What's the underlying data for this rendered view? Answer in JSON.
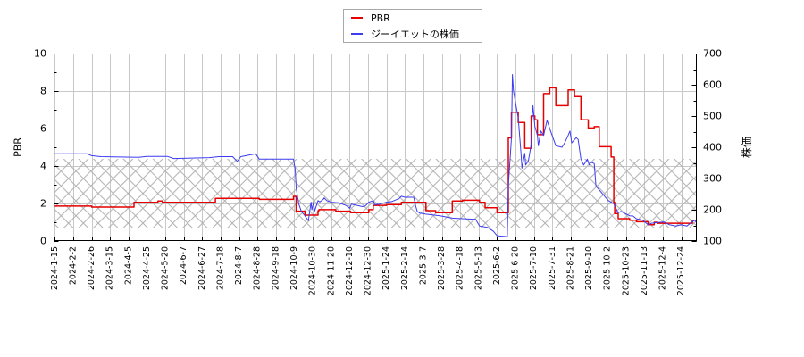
{
  "chart_data": {
    "type": "line",
    "xlabel": "",
    "ylabel": "PBR",
    "ylabel_right": "株価",
    "grid": true,
    "legend": {
      "position": "upper center",
      "entries": [
        "PBR",
        "ジーイエットの株価"
      ]
    },
    "x_ticks": [
      "2024-1-15",
      "2024-2-2",
      "2024-2-26",
      "2024-3-15",
      "2024-4-5",
      "2024-4-25",
      "2024-5-20",
      "2024-6-7",
      "2024-6-27",
      "2024-7-18",
      "2024-8-7",
      "2024-8-28",
      "2024-9-18",
      "2024-10-9",
      "2024-10-30",
      "2024-11-20",
      "2024-12-10",
      "2024-12-30",
      "2025-1-24",
      "2025-2-14",
      "2025-3-7",
      "2025-3-28",
      "2025-4-18",
      "2025-5-13",
      "2025-6-2",
      "2025-6-20",
      "2025-7-10",
      "2025-7-31",
      "2025-8-21",
      "2025-9-10",
      "2025-10-2",
      "2025-10-23",
      "2025-11-13",
      "2025-12-4",
      "2025-12-24"
    ],
    "y_left": {
      "label": "PBR",
      "min": 0,
      "max": 10,
      "ticks": [
        0,
        2,
        4,
        6,
        8,
        10
      ],
      "minor_step": 1
    },
    "y_right": {
      "label": "株価",
      "min": 100,
      "max": 700,
      "ticks": [
        100,
        200,
        300,
        400,
        500,
        600,
        700
      ],
      "minor_step": 50
    },
    "shaded_band": {
      "axis": "left",
      "y_range": [
        0.67,
        4.38
      ],
      "style": "crosshatch"
    },
    "series": [
      {
        "id": "pbr",
        "name": "PBR",
        "axis": "left",
        "color": "#e60000",
        "width": 1.5,
        "step": true,
        "points": [
          [
            "2024-01-15",
            1.86
          ],
          [
            "2024-02-26",
            1.81
          ],
          [
            "2024-04-11",
            2.06
          ],
          [
            "2024-05-10",
            2.13
          ],
          [
            "2024-05-16",
            2.06
          ],
          [
            "2024-07-12",
            2.27
          ],
          [
            "2024-08-30",
            2.22
          ],
          [
            "2024-10-08",
            2.38
          ],
          [
            "2024-10-11",
            1.59
          ],
          [
            "2024-10-21",
            1.38
          ],
          [
            "2024-11-05",
            1.62
          ],
          [
            "2024-11-06",
            1.67
          ],
          [
            "2024-11-25",
            1.59
          ],
          [
            "2024-12-11",
            1.51
          ],
          [
            "2024-12-31",
            1.67
          ],
          [
            "2025-01-06",
            1.9
          ],
          [
            "2025-01-24",
            1.94
          ],
          [
            "2025-02-10",
            2.06
          ],
          [
            "2025-03-10",
            1.62
          ],
          [
            "2025-03-21",
            1.51
          ],
          [
            "2025-04-09",
            2.13
          ],
          [
            "2025-04-21",
            2.17
          ],
          [
            "2025-05-14",
            2.06
          ],
          [
            "2025-05-20",
            1.77
          ],
          [
            "2025-06-02",
            1.51
          ],
          [
            "2025-06-13",
            5.5
          ],
          [
            "2025-06-16",
            6.87
          ],
          [
            "2025-06-23",
            6.32
          ],
          [
            "2025-06-30",
            4.95
          ],
          [
            "2025-07-07",
            6.67
          ],
          [
            "2025-07-11",
            6.46
          ],
          [
            "2025-07-14",
            5.67
          ],
          [
            "2025-07-21",
            7.86
          ],
          [
            "2025-07-28",
            8.17
          ],
          [
            "2025-08-04",
            7.22
          ],
          [
            "2025-08-18",
            8.06
          ],
          [
            "2025-08-25",
            7.7
          ],
          [
            "2025-09-01",
            6.46
          ],
          [
            "2025-09-09",
            6.03
          ],
          [
            "2025-09-16",
            6.1
          ],
          [
            "2025-09-22",
            5.03
          ],
          [
            "2025-10-06",
            4.48
          ],
          [
            "2025-10-09",
            2.06
          ],
          [
            "2025-10-10",
            1.46
          ],
          [
            "2025-10-14",
            1.19
          ],
          [
            "2025-10-27",
            1.11
          ],
          [
            "2025-11-04",
            1.03
          ],
          [
            "2025-11-17",
            0.87
          ],
          [
            "2025-11-24",
            1.0
          ],
          [
            "2025-11-28",
            0.95
          ],
          [
            "2026-01-05",
            1.11
          ],
          [
            "2026-01-09",
            1.13
          ]
        ]
      },
      {
        "id": "price",
        "name": "ジーイエットの株価",
        "axis": "right",
        "color": "#3c3cf0",
        "width": 1,
        "step": false,
        "points": [
          [
            "2024-01-15",
            379
          ],
          [
            "2024-02-20",
            379
          ],
          [
            "2024-02-26",
            373
          ],
          [
            "2024-03-06",
            370
          ],
          [
            "2024-04-16",
            368
          ],
          [
            "2024-04-25",
            371
          ],
          [
            "2024-05-22",
            371
          ],
          [
            "2024-05-28",
            364
          ],
          [
            "2024-07-05",
            367
          ],
          [
            "2024-07-16",
            370
          ],
          [
            "2024-07-31",
            370
          ],
          [
            "2024-08-05",
            355
          ],
          [
            "2024-08-09",
            370
          ],
          [
            "2024-08-26",
            379
          ],
          [
            "2024-08-30",
            362
          ],
          [
            "2024-10-08",
            362
          ],
          [
            "2024-10-10",
            329
          ],
          [
            "2024-10-11",
            271
          ],
          [
            "2024-10-14",
            219
          ],
          [
            "2024-10-17",
            195
          ],
          [
            "2024-10-21",
            181
          ],
          [
            "2024-10-25",
            165
          ],
          [
            "2024-10-28",
            224
          ],
          [
            "2024-10-29",
            200
          ],
          [
            "2024-10-31",
            224
          ],
          [
            "2024-11-01",
            195
          ],
          [
            "2024-11-05",
            229
          ],
          [
            "2024-11-07",
            225
          ],
          [
            "2024-11-11",
            233
          ],
          [
            "2024-11-12",
            238
          ],
          [
            "2024-11-15",
            229
          ],
          [
            "2024-11-20",
            224
          ],
          [
            "2024-11-28",
            222
          ],
          [
            "2024-12-06",
            214
          ],
          [
            "2024-12-10",
            205
          ],
          [
            "2024-12-12",
            218
          ],
          [
            "2024-12-18",
            214
          ],
          [
            "2024-12-24",
            210
          ],
          [
            "2024-12-27",
            212
          ],
          [
            "2024-12-31",
            224
          ],
          [
            "2025-01-06",
            229
          ],
          [
            "2025-01-08",
            216
          ],
          [
            "2025-01-15",
            218
          ],
          [
            "2025-01-24",
            224
          ],
          [
            "2025-01-30",
            226
          ],
          [
            "2025-02-05",
            233
          ],
          [
            "2025-02-07",
            235
          ],
          [
            "2025-02-10",
            243
          ],
          [
            "2025-02-14",
            240
          ],
          [
            "2025-02-24",
            240
          ],
          [
            "2025-02-26",
            214
          ],
          [
            "2025-02-28",
            195
          ],
          [
            "2025-03-03",
            189
          ],
          [
            "2025-03-10",
            186
          ],
          [
            "2025-03-26",
            181
          ],
          [
            "2025-04-09",
            173
          ],
          [
            "2025-05-09",
            169
          ],
          [
            "2025-05-14",
            148
          ],
          [
            "2025-05-23",
            143
          ],
          [
            "2025-05-29",
            131
          ],
          [
            "2025-06-02",
            117
          ],
          [
            "2025-06-12",
            114
          ],
          [
            "2025-06-13",
            276
          ],
          [
            "2025-06-16",
            429
          ],
          [
            "2025-06-17",
            633
          ],
          [
            "2025-06-18",
            581
          ],
          [
            "2025-06-20",
            543
          ],
          [
            "2025-06-23",
            495
          ],
          [
            "2025-06-26",
            381
          ],
          [
            "2025-06-27",
            333
          ],
          [
            "2025-06-30",
            381
          ],
          [
            "2025-07-01",
            343
          ],
          [
            "2025-07-04",
            357
          ],
          [
            "2025-07-07",
            409
          ],
          [
            "2025-07-08",
            486
          ],
          [
            "2025-07-09",
            533
          ],
          [
            "2025-07-11",
            467
          ],
          [
            "2025-07-14",
            438
          ],
          [
            "2025-07-15",
            405
          ],
          [
            "2025-07-18",
            452
          ],
          [
            "2025-07-21",
            438
          ],
          [
            "2025-07-25",
            486
          ],
          [
            "2025-07-29",
            452
          ],
          [
            "2025-08-04",
            405
          ],
          [
            "2025-08-11",
            400
          ],
          [
            "2025-08-14",
            414
          ],
          [
            "2025-08-18",
            438
          ],
          [
            "2025-08-20",
            452
          ],
          [
            "2025-08-22",
            414
          ],
          [
            "2025-08-27",
            431
          ],
          [
            "2025-08-29",
            425
          ],
          [
            "2025-09-01",
            362
          ],
          [
            "2025-09-04",
            343
          ],
          [
            "2025-09-08",
            362
          ],
          [
            "2025-09-10",
            343
          ],
          [
            "2025-09-12",
            352
          ],
          [
            "2025-09-16",
            348
          ],
          [
            "2025-09-18",
            276
          ],
          [
            "2025-09-24",
            257
          ],
          [
            "2025-09-30",
            238
          ],
          [
            "2025-10-03",
            229
          ],
          [
            "2025-10-09",
            219
          ],
          [
            "2025-10-14",
            190
          ],
          [
            "2025-10-17",
            195
          ],
          [
            "2025-10-22",
            188
          ],
          [
            "2025-10-27",
            181
          ],
          [
            "2025-10-31",
            180
          ],
          [
            "2025-11-04",
            171
          ],
          [
            "2025-11-11",
            167
          ],
          [
            "2025-11-17",
            152
          ],
          [
            "2025-11-21",
            157
          ],
          [
            "2025-11-28",
            159
          ],
          [
            "2025-12-05",
            161
          ],
          [
            "2025-12-11",
            152
          ],
          [
            "2025-12-18",
            148
          ],
          [
            "2025-12-24",
            152
          ],
          [
            "2025-12-30",
            148
          ],
          [
            "2026-01-05",
            162
          ],
          [
            "2026-01-08",
            167
          ],
          [
            "2026-01-09",
            160
          ]
        ]
      }
    ]
  }
}
